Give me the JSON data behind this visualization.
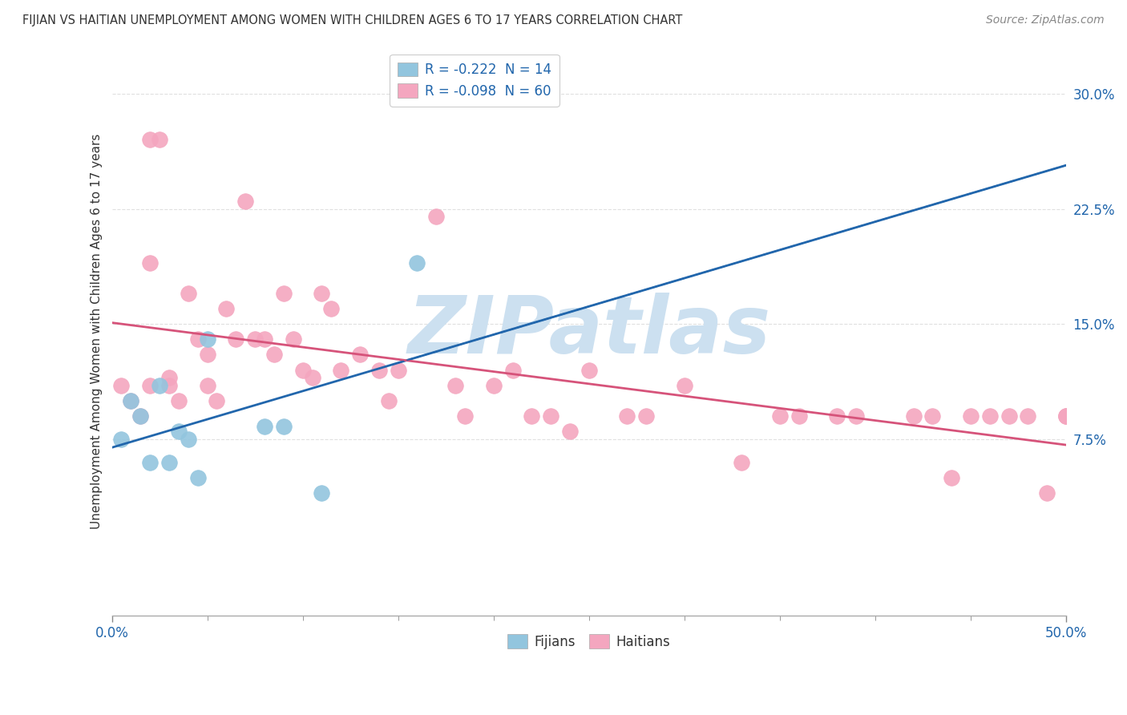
{
  "title": "FIJIAN VS HAITIAN UNEMPLOYMENT AMONG WOMEN WITH CHILDREN AGES 6 TO 17 YEARS CORRELATION CHART",
  "source": "Source: ZipAtlas.com",
  "ylabel": "Unemployment Among Women with Children Ages 6 to 17 years",
  "ytick_values": [
    0.075,
    0.15,
    0.225,
    0.3
  ],
  "xlim": [
    0.0,
    0.5
  ],
  "ylim": [
    -0.04,
    0.33
  ],
  "legend_fijians": "Fijians",
  "legend_haitians": "Haitians",
  "r_fijian": "-0.222",
  "n_fijian": "14",
  "r_haitian": "-0.098",
  "n_haitian": "60",
  "fijian_color": "#92c5de",
  "haitian_color": "#f4a6bf",
  "fijian_line_color": "#2166ac",
  "haitian_line_color": "#d6537a",
  "watermark_color": "#cce0f0",
  "fijian_x": [
    0.005,
    0.01,
    0.015,
    0.02,
    0.025,
    0.03,
    0.035,
    0.04,
    0.045,
    0.05,
    0.08,
    0.09,
    0.11,
    0.16
  ],
  "fijian_y": [
    0.075,
    0.1,
    0.09,
    0.06,
    0.11,
    0.06,
    0.08,
    0.075,
    0.05,
    0.14,
    0.083,
    0.083,
    0.04,
    0.19
  ],
  "haitian_x": [
    0.005,
    0.01,
    0.015,
    0.02,
    0.025,
    0.02,
    0.02,
    0.03,
    0.03,
    0.035,
    0.04,
    0.045,
    0.05,
    0.05,
    0.055,
    0.06,
    0.065,
    0.07,
    0.075,
    0.08,
    0.085,
    0.09,
    0.095,
    0.1,
    0.105,
    0.11,
    0.115,
    0.12,
    0.13,
    0.14,
    0.145,
    0.15,
    0.17,
    0.18,
    0.185,
    0.2,
    0.21,
    0.22,
    0.23,
    0.24,
    0.25,
    0.27,
    0.28,
    0.3,
    0.33,
    0.35,
    0.36,
    0.38,
    0.39,
    0.42,
    0.43,
    0.44,
    0.45,
    0.46,
    0.47,
    0.48,
    0.49,
    0.5,
    0.5,
    0.5
  ],
  "haitian_y": [
    0.11,
    0.1,
    0.09,
    0.27,
    0.27,
    0.19,
    0.11,
    0.11,
    0.115,
    0.1,
    0.17,
    0.14,
    0.13,
    0.11,
    0.1,
    0.16,
    0.14,
    0.23,
    0.14,
    0.14,
    0.13,
    0.17,
    0.14,
    0.12,
    0.115,
    0.17,
    0.16,
    0.12,
    0.13,
    0.12,
    0.1,
    0.12,
    0.22,
    0.11,
    0.09,
    0.11,
    0.12,
    0.09,
    0.09,
    0.08,
    0.12,
    0.09,
    0.09,
    0.11,
    0.06,
    0.09,
    0.09,
    0.09,
    0.09,
    0.09,
    0.09,
    0.05,
    0.09,
    0.09,
    0.09,
    0.09,
    0.04,
    0.09,
    0.09,
    0.09
  ],
  "background_color": "#ffffff",
  "grid_color": "#e0e0e0"
}
